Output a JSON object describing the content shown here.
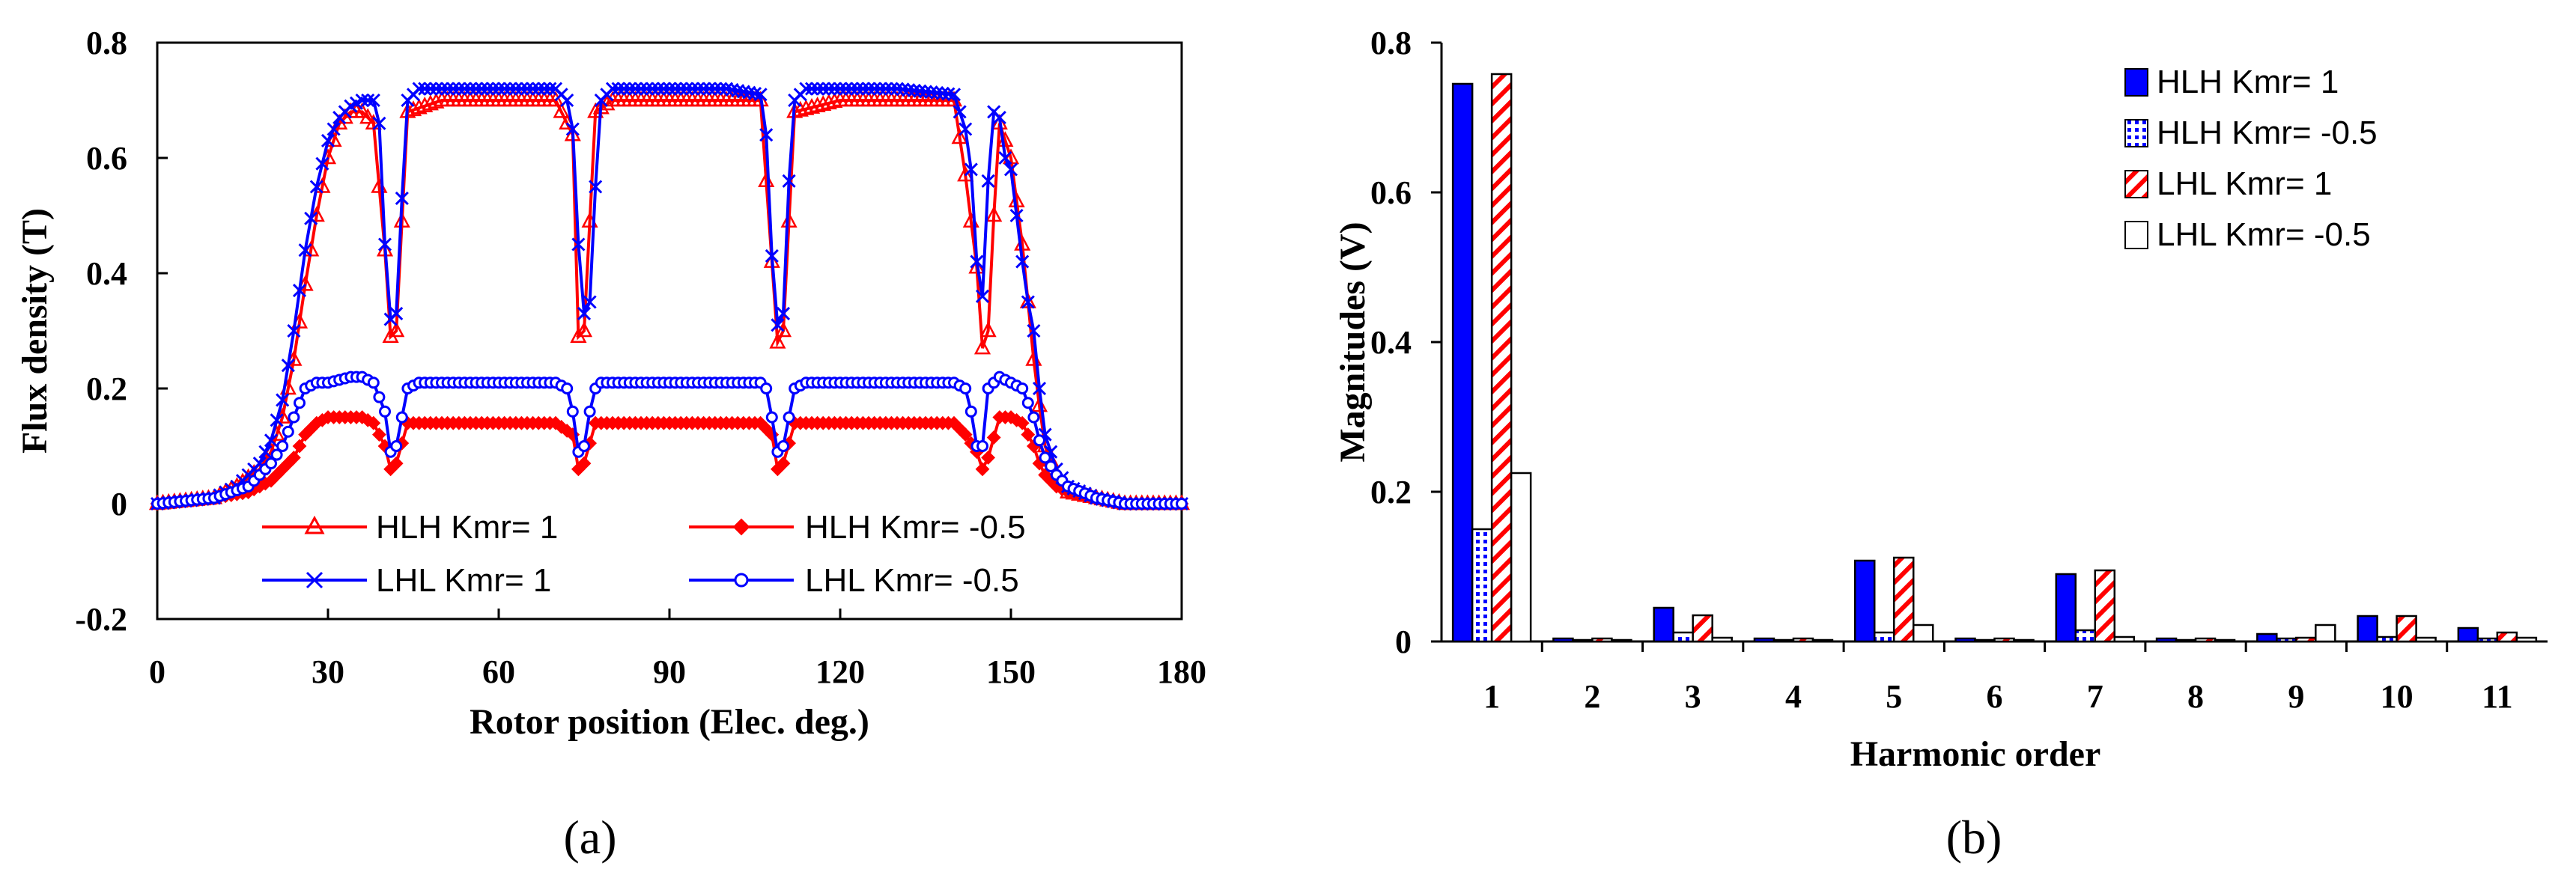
{
  "colors": {
    "red": "#ff0000",
    "blue": "#0000ff",
    "black": "#000000",
    "white": "#ffffff"
  },
  "chart_data": [
    {
      "panel_label": "(a)",
      "type": "line",
      "title": "",
      "xlabel": "Rotor position (Elec. deg.)",
      "ylabel": "Flux density (T)",
      "xlim": [
        0,
        180
      ],
      "ylim": [
        -0.2,
        0.8
      ],
      "xticks": [
        "0",
        "30",
        "60",
        "90",
        "120",
        "150",
        "180"
      ],
      "yticks": [
        "-0.2",
        "0",
        "0.2",
        "0.4",
        "0.6",
        "0.8"
      ],
      "grid": false,
      "legend_position": "bottom-center",
      "series": [
        {
          "name": "HLH Kmr= 1",
          "color": "#ff0000",
          "marker": "triangle",
          "x": [
            0,
            10,
            14,
            18,
            20,
            22,
            24,
            26,
            28,
            30,
            32,
            34,
            36,
            38,
            40,
            41,
            42,
            44,
            50,
            60,
            70,
            73,
            74,
            75,
            77,
            80,
            90,
            100,
            106,
            108,
            109,
            110,
            112,
            120,
            130,
            140,
            142,
            144,
            145,
            146,
            147,
            148,
            150,
            152,
            153,
            154,
            155,
            156,
            158,
            160,
            165,
            170,
            180
          ],
          "y": [
            0.0,
            0.01,
            0.03,
            0.06,
            0.09,
            0.15,
            0.25,
            0.38,
            0.5,
            0.6,
            0.66,
            0.68,
            0.68,
            0.66,
            0.44,
            0.29,
            0.3,
            0.68,
            0.7,
            0.7,
            0.7,
            0.64,
            0.29,
            0.3,
            0.68,
            0.7,
            0.7,
            0.7,
            0.7,
            0.42,
            0.28,
            0.3,
            0.68,
            0.7,
            0.7,
            0.7,
            0.57,
            0.41,
            0.27,
            0.3,
            0.5,
            0.66,
            0.6,
            0.45,
            0.35,
            0.25,
            0.17,
            0.1,
            0.05,
            0.02,
            0.01,
            0.0,
            0.0
          ]
        },
        {
          "name": "HLH Kmr= -0.5",
          "color": "#ff0000",
          "marker": "diamond",
          "x": [
            0,
            10,
            16,
            20,
            22,
            24,
            26,
            28,
            30,
            32,
            36,
            38,
            40,
            41,
            42,
            44,
            50,
            60,
            70,
            73,
            74,
            75,
            77,
            80,
            90,
            100,
            106,
            108,
            109,
            110,
            112,
            120,
            130,
            140,
            142,
            144,
            145,
            146,
            148,
            150,
            152,
            154,
            155,
            156,
            158,
            160,
            165,
            170,
            180
          ],
          "y": [
            0.0,
            0.01,
            0.02,
            0.04,
            0.06,
            0.08,
            0.12,
            0.14,
            0.15,
            0.15,
            0.15,
            0.14,
            0.1,
            0.06,
            0.07,
            0.14,
            0.14,
            0.14,
            0.14,
            0.12,
            0.06,
            0.07,
            0.14,
            0.14,
            0.14,
            0.14,
            0.14,
            0.12,
            0.06,
            0.07,
            0.14,
            0.14,
            0.14,
            0.14,
            0.12,
            0.09,
            0.06,
            0.08,
            0.15,
            0.15,
            0.14,
            0.1,
            0.07,
            0.05,
            0.03,
            0.02,
            0.01,
            0.0,
            0.0
          ]
        },
        {
          "name": "LHL Kmr= 1",
          "color": "#0000ff",
          "marker": "x",
          "x": [
            0,
            10,
            14,
            18,
            20,
            22,
            24,
            26,
            28,
            30,
            32,
            34,
            36,
            38,
            39,
            40,
            41,
            42,
            43,
            44,
            46,
            50,
            60,
            70,
            72,
            73,
            74,
            75,
            76,
            77,
            78,
            80,
            90,
            100,
            106,
            107,
            108,
            109,
            110,
            111,
            112,
            114,
            120,
            130,
            140,
            142,
            143,
            144,
            145,
            146,
            147,
            148,
            149,
            150,
            151,
            152,
            153,
            154,
            155,
            156,
            158,
            160,
            165,
            170,
            180
          ],
          "y": [
            0.0,
            0.01,
            0.03,
            0.07,
            0.11,
            0.18,
            0.3,
            0.44,
            0.55,
            0.63,
            0.67,
            0.69,
            0.7,
            0.7,
            0.66,
            0.45,
            0.32,
            0.33,
            0.53,
            0.7,
            0.72,
            0.72,
            0.72,
            0.72,
            0.7,
            0.65,
            0.45,
            0.33,
            0.35,
            0.55,
            0.7,
            0.72,
            0.72,
            0.72,
            0.71,
            0.64,
            0.43,
            0.31,
            0.33,
            0.56,
            0.7,
            0.72,
            0.72,
            0.72,
            0.71,
            0.65,
            0.58,
            0.42,
            0.36,
            0.56,
            0.68,
            0.67,
            0.6,
            0.58,
            0.5,
            0.42,
            0.35,
            0.3,
            0.2,
            0.12,
            0.06,
            0.03,
            0.01,
            0.0,
            0.0
          ]
        },
        {
          "name": "LHL Kmr= -0.5",
          "color": "#0000ff",
          "marker": "circle",
          "x": [
            0,
            10,
            16,
            20,
            22,
            24,
            26,
            28,
            30,
            34,
            36,
            38,
            40,
            41,
            42,
            44,
            46,
            50,
            60,
            70,
            72,
            73,
            74,
            75,
            76,
            77,
            78,
            80,
            90,
            100,
            106,
            107,
            108,
            109,
            110,
            112,
            114,
            120,
            130,
            140,
            142,
            143,
            144,
            145,
            146,
            148,
            150,
            152,
            154,
            155,
            156,
            158,
            160,
            165,
            170,
            180
          ],
          "y": [
            0.0,
            0.01,
            0.03,
            0.07,
            0.1,
            0.15,
            0.2,
            0.21,
            0.21,
            0.22,
            0.22,
            0.21,
            0.16,
            0.09,
            0.1,
            0.2,
            0.21,
            0.21,
            0.21,
            0.21,
            0.2,
            0.16,
            0.09,
            0.1,
            0.16,
            0.2,
            0.21,
            0.21,
            0.21,
            0.21,
            0.21,
            0.2,
            0.15,
            0.09,
            0.1,
            0.2,
            0.21,
            0.21,
            0.21,
            0.21,
            0.2,
            0.16,
            0.1,
            0.1,
            0.2,
            0.22,
            0.21,
            0.2,
            0.15,
            0.11,
            0.08,
            0.05,
            0.03,
            0.01,
            0.0,
            0.0
          ]
        }
      ]
    },
    {
      "panel_label": "(b)",
      "type": "bar",
      "title": "",
      "xlabel": "Harmonic order",
      "ylabel": "Magnitudes (V)",
      "ylim": [
        0,
        0.8
      ],
      "yticks": [
        "0",
        "0.2",
        "0.4",
        "0.6",
        "0.8"
      ],
      "grid": false,
      "legend_position": "top-right",
      "categories": [
        "1",
        "2",
        "3",
        "4",
        "5",
        "6",
        "7",
        "8",
        "9",
        "10",
        "11"
      ],
      "series": [
        {
          "name": "HLH Kmr= 1",
          "fill": "solid-blue",
          "values": [
            0.745,
            0.004,
            0.045,
            0.004,
            0.108,
            0.004,
            0.09,
            0.004,
            0.01,
            0.034,
            0.018
          ]
        },
        {
          "name": "HLH Kmr= -0.5",
          "fill": "dotted-blue",
          "values": [
            0.15,
            0.002,
            0.012,
            0.002,
            0.012,
            0.002,
            0.015,
            0.002,
            0.004,
            0.006,
            0.004
          ]
        },
        {
          "name": "LHL Kmr= 1",
          "fill": "hatched-red",
          "values": [
            0.758,
            0.004,
            0.035,
            0.004,
            0.112,
            0.004,
            0.095,
            0.004,
            0.005,
            0.034,
            0.012
          ]
        },
        {
          "name": "LHL Kmr= -0.5",
          "fill": "white",
          "values": [
            0.225,
            0.002,
            0.005,
            0.002,
            0.022,
            0.002,
            0.006,
            0.002,
            0.022,
            0.005,
            0.005
          ]
        }
      ]
    }
  ]
}
